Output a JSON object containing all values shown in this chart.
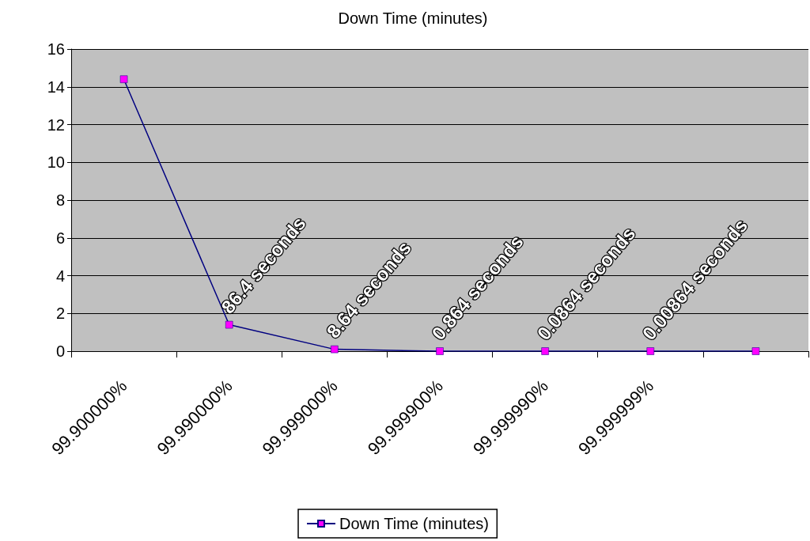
{
  "chart_data": {
    "type": "line",
    "title": "Down Time (minutes)",
    "categories": [
      "99.900000%",
      "99.990000%",
      "99.999000%",
      "99.999900%",
      "99.999990%",
      "99.999999%",
      null
    ],
    "series": [
      {
        "name": "Down Time (minutes)",
        "color": "#000080",
        "colors": [
          "#ff00ff",
          "#ff00ff",
          "#ff00ff",
          "#ff00ff",
          "#ff00ff",
          "#ff00ff",
          "#ff00ff"
        ],
        "values": [
          14.4,
          1.4,
          0.1,
          0,
          0,
          0,
          0
        ]
      }
    ],
    "annotations": [
      {
        "text": "86.4 seconds",
        "x": "99.990000%",
        "y": 1.4
      },
      {
        "text": "8.64 seconds",
        "x": "99.999000%",
        "y": 0.1
      },
      {
        "text": "0.864 seconds",
        "x": "99.999900%",
        "y": 0
      },
      {
        "text": "0.0864 seconds",
        "x": "99.999990%",
        "y": 0
      },
      {
        "text": "0.00864 seconds",
        "x": "99.999999%",
        "y": 0
      }
    ],
    "ylim": [
      0,
      16
    ],
    "yticks": [
      0,
      2,
      4,
      6,
      8,
      10,
      12,
      14,
      16
    ],
    "grid": "y",
    "legend": "bottom",
    "marker": "square",
    "line_style": "solid"
  }
}
